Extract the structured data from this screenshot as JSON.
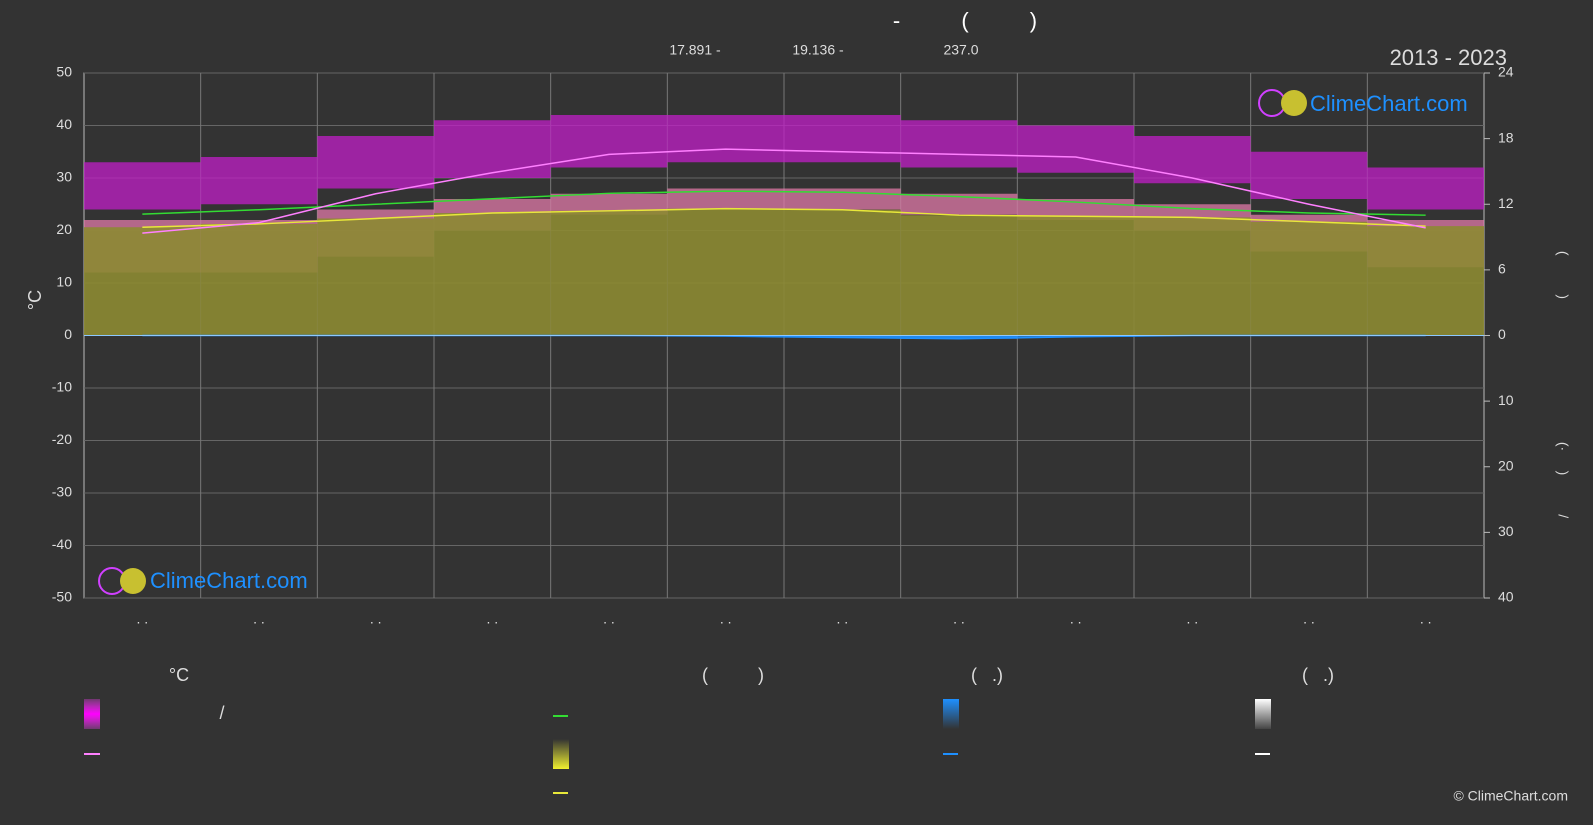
{
  "chart_data": {
    "type": "climate",
    "title": "-          (          )",
    "subtitle": [
      "17.891 -",
      "19.136 -",
      "237.0"
    ],
    "period": "2013 - 2023",
    "watermark": "ClimeChart.com",
    "copyright": "© ClimeChart.com",
    "y_label": "°C",
    "y2_label": "(          )",
    "y3_label": "(·     )          /",
    "categories": [
      ". .",
      ". .",
      ". .",
      ". .",
      ". .",
      ". .",
      ". .",
      ". .",
      ". .",
      ". .",
      ". .",
      ". ."
    ],
    "ylim": [
      -50,
      50
    ],
    "yticks": [
      -50,
      -40,
      -30,
      -20,
      -10,
      0,
      10,
      20,
      30,
      40,
      50
    ],
    "y2lim": [
      0,
      24
    ],
    "y2ticks": [
      0,
      6,
      12,
      18,
      24
    ],
    "y3lim": [
      0,
      40
    ],
    "y3ticks": [
      10,
      20,
      30,
      40
    ],
    "grid": true,
    "series": [
      {
        "kind": "band",
        "color": "#e07aa8",
        "low": [
          12,
          12,
          15,
          20,
          23,
          24,
          24,
          23,
          22,
          20,
          16,
          13
        ],
        "high": [
          22,
          22,
          24,
          26,
          27,
          28,
          28,
          27,
          26,
          25,
          23,
          22
        ]
      },
      {
        "kind": "band",
        "color": "#c21fc8",
        "low": [
          24,
          25,
          28,
          30,
          32,
          33,
          33,
          32,
          31,
          29,
          26,
          24
        ],
        "high": [
          33,
          34,
          38,
          41,
          42,
          42,
          42,
          41,
          40,
          38,
          35,
          32
        ]
      },
      {
        "kind": "area",
        "axis": "y2",
        "color": "#8c8a32",
        "line_color": "#e8e83a",
        "values": [
          9.9,
          10.2,
          10.7,
          11.2,
          11.4,
          11.6,
          11.5,
          11.0,
          10.9,
          10.8,
          10.4,
          10.0
        ]
      },
      {
        "kind": "line",
        "axis": "y2",
        "color": "#33dd33",
        "values": [
          11.1,
          11.5,
          12.0,
          12.5,
          13.0,
          13.2,
          13.1,
          12.7,
          12.2,
          11.6,
          11.2,
          11.0
        ]
      },
      {
        "kind": "line",
        "color": "#ff80ff",
        "values": [
          19.5,
          21.5,
          27,
          31,
          34.5,
          35.5,
          35,
          34.5,
          34,
          30,
          25,
          20.5
        ]
      },
      {
        "kind": "area",
        "axis": "y3",
        "color": "#1e90ff",
        "line_color": "#1e90ff",
        "values": [
          0,
          0,
          0,
          0,
          0,
          0.1,
          0.3,
          0.5,
          0.2,
          0,
          0,
          0
        ]
      }
    ],
    "legend": {
      "headers": [
        "°C",
        "(          )",
        "(   .)",
        "(   .)"
      ],
      "note": "/"
    }
  }
}
